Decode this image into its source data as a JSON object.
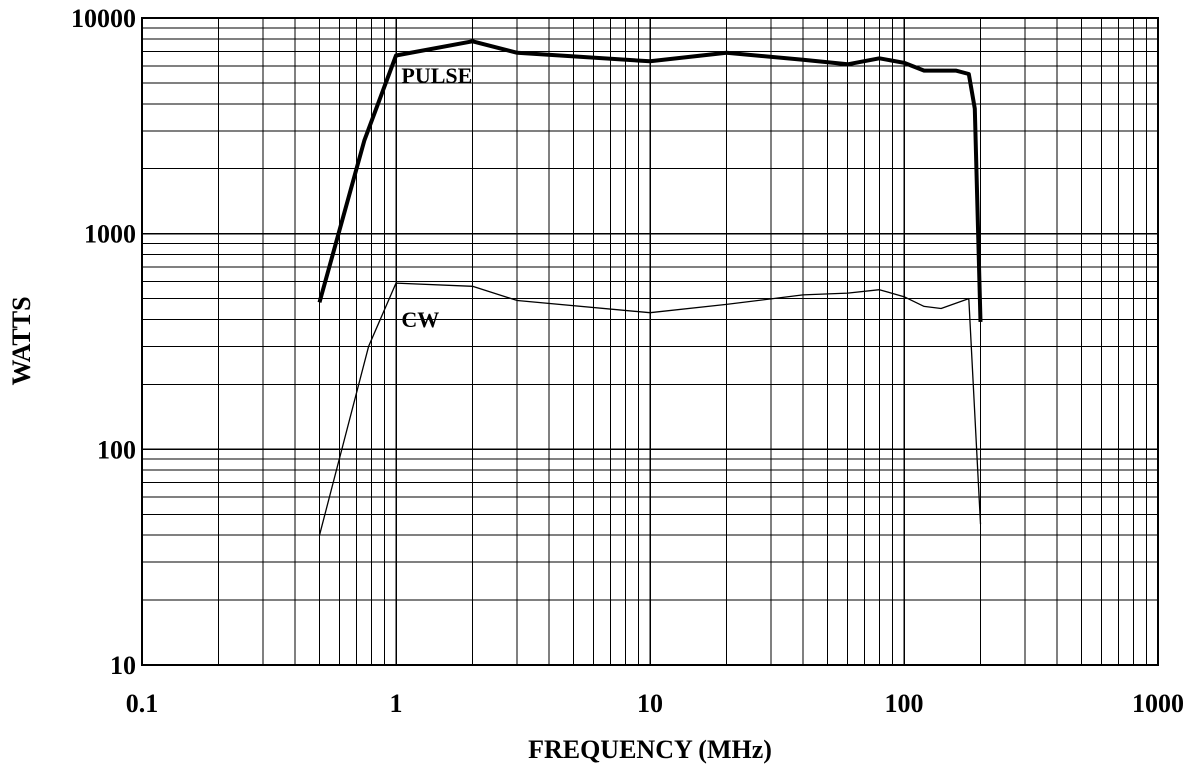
{
  "chart_data": {
    "type": "line",
    "xscale": "log",
    "yscale": "log",
    "xlim": [
      0.1,
      1000
    ],
    "ylim": [
      10,
      10000
    ],
    "grid": true,
    "xlabel": "FREQUENCY (MHz)",
    "ylabel": "WATTS",
    "x_ticks": [
      {
        "value": 0.1,
        "label": "0.1"
      },
      {
        "value": 1,
        "label": "1"
      },
      {
        "value": 10,
        "label": "10"
      },
      {
        "value": 100,
        "label": "100"
      },
      {
        "value": 1000,
        "label": "1000"
      }
    ],
    "y_ticks": [
      {
        "value": 10,
        "label": "10"
      },
      {
        "value": 100,
        "label": "100"
      },
      {
        "value": 1000,
        "label": "1000"
      },
      {
        "value": 10000,
        "label": "10000"
      }
    ],
    "series": [
      {
        "name": "PULSE",
        "color": "#000000",
        "width": "thick",
        "label_at": [
          1.05,
          5000
        ],
        "points": [
          [
            0.5,
            480
          ],
          [
            0.75,
            2700
          ],
          [
            1,
            6700
          ],
          [
            2,
            7800
          ],
          [
            3,
            6900
          ],
          [
            10,
            6300
          ],
          [
            20,
            6900
          ],
          [
            40,
            6400
          ],
          [
            60,
            6100
          ],
          [
            80,
            6500
          ],
          [
            100,
            6200
          ],
          [
            120,
            5700
          ],
          [
            160,
            5700
          ],
          [
            180,
            5500
          ],
          [
            190,
            3800
          ],
          [
            200,
            390
          ]
        ]
      },
      {
        "name": "CW",
        "color": "#000000",
        "width": "thin",
        "label_at": [
          1.05,
          370
        ],
        "points": [
          [
            0.5,
            40
          ],
          [
            0.78,
            300
          ],
          [
            1,
            590
          ],
          [
            2,
            570
          ],
          [
            3,
            490
          ],
          [
            10,
            430
          ],
          [
            20,
            470
          ],
          [
            40,
            520
          ],
          [
            60,
            530
          ],
          [
            80,
            550
          ],
          [
            100,
            510
          ],
          [
            120,
            460
          ],
          [
            140,
            450
          ],
          [
            180,
            500
          ],
          [
            200,
            45
          ]
        ]
      }
    ]
  }
}
